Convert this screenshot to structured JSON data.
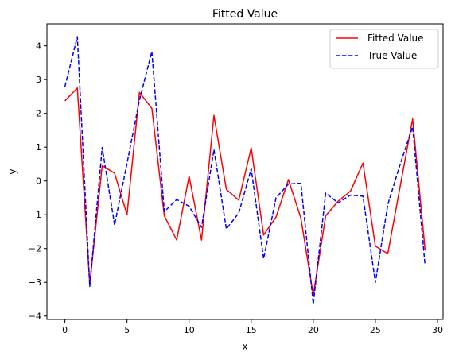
{
  "chart_data": {
    "type": "line",
    "title": "Fitted Value",
    "xlabel": "x",
    "ylabel": "y",
    "xlim": [
      -1.45,
      30.45
    ],
    "ylim": [
      -4.1,
      4.65
    ],
    "xticks": [
      0,
      5,
      10,
      15,
      20,
      25,
      30
    ],
    "yticks": [
      -4,
      -3,
      -2,
      -1,
      0,
      1,
      2,
      3,
      4
    ],
    "grid": false,
    "legend_position": "top-right",
    "x": [
      0,
      1,
      2,
      3,
      4,
      5,
      6,
      7,
      8,
      9,
      10,
      11,
      12,
      13,
      14,
      15,
      16,
      17,
      18,
      19,
      20,
      21,
      22,
      23,
      24,
      25,
      26,
      27,
      28,
      29
    ],
    "series": [
      {
        "name": "Fitted Value",
        "color": "#ff0000",
        "style": "solid",
        "values": [
          2.37,
          2.75,
          -3.05,
          0.45,
          0.23,
          -1.0,
          2.62,
          2.15,
          -1.03,
          -1.75,
          0.14,
          -1.75,
          1.94,
          -0.25,
          -0.57,
          0.98,
          -1.6,
          -1.07,
          0.04,
          -1.1,
          -3.38,
          -1.03,
          -0.6,
          -0.3,
          0.53,
          -1.93,
          -2.15,
          -0.15,
          1.84,
          -2.03
        ]
      },
      {
        "name": "True Value",
        "color": "#0000ff",
        "style": "dashed",
        "values": [
          2.79,
          4.27,
          -3.12,
          0.99,
          -1.3,
          0.52,
          2.39,
          3.83,
          -0.91,
          -0.55,
          -0.75,
          -1.37,
          0.93,
          -1.42,
          -0.95,
          0.36,
          -2.3,
          -0.5,
          -0.09,
          -0.07,
          -3.64,
          -0.36,
          -0.65,
          -0.42,
          -0.45,
          -3.0,
          -0.7,
          0.5,
          1.6,
          -2.5
        ]
      }
    ]
  }
}
